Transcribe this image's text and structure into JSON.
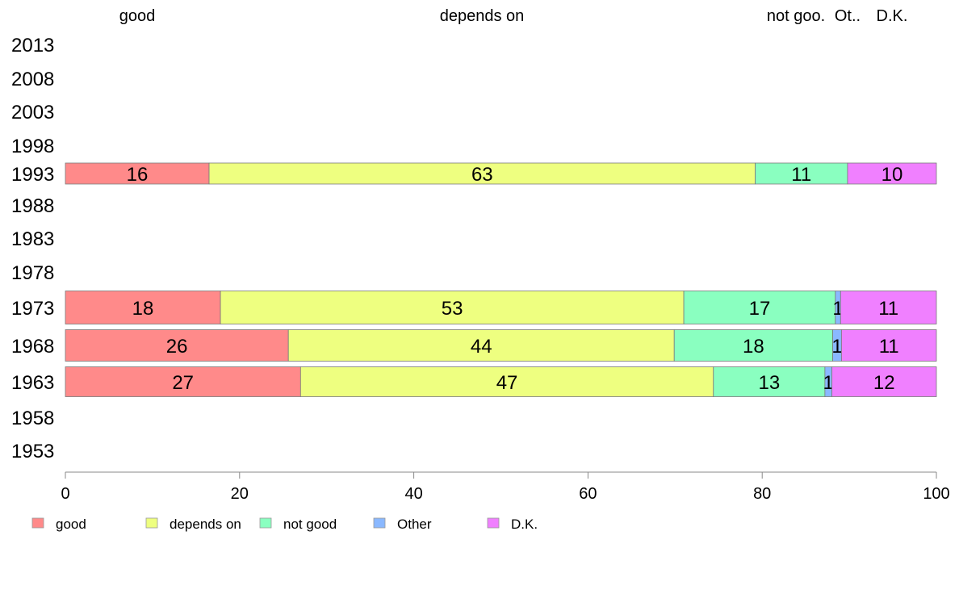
{
  "chart_data": {
    "type": "bar",
    "orientation": "horizontal",
    "stacked": true,
    "top_labels": [
      "good",
      "depends on",
      "not goo.",
      "Ot..",
      "D.K."
    ],
    "years": [
      "2013",
      "2008",
      "2003",
      "1998",
      "1993",
      "1988",
      "1983",
      "1978",
      "1973",
      "1968",
      "1963",
      "1958",
      "1953"
    ],
    "series": [
      {
        "name": "good",
        "color": "#ff8a8a",
        "values": [
          null,
          null,
          null,
          null,
          16.5,
          null,
          null,
          null,
          17.8,
          25.6,
          27.0,
          null,
          null
        ],
        "labels": [
          "",
          "",
          "",
          "",
          "16",
          "",
          "",
          "",
          "18",
          "26",
          "27",
          "",
          ""
        ]
      },
      {
        "name": "depends on",
        "color": "#eeff80",
        "values": [
          null,
          null,
          null,
          null,
          62.7,
          null,
          null,
          null,
          53.2,
          44.3,
          47.4,
          null,
          null
        ],
        "labels": [
          "",
          "",
          "",
          "",
          "63",
          "",
          "",
          "",
          "53",
          "44",
          "47",
          "",
          ""
        ]
      },
      {
        "name": "not good",
        "color": "#8affc0",
        "values": [
          null,
          null,
          null,
          null,
          10.6,
          null,
          null,
          null,
          17.4,
          18.2,
          12.8,
          null,
          null
        ],
        "labels": [
          "",
          "",
          "",
          "",
          "11",
          "",
          "",
          "",
          "17",
          "18",
          "13",
          "",
          ""
        ]
      },
      {
        "name": "Other",
        "color": "#8ab8ff",
        "values": [
          null,
          null,
          null,
          null,
          0,
          null,
          null,
          null,
          0.6,
          1.0,
          0.8,
          null,
          null
        ],
        "labels": [
          "",
          "",
          "",
          "",
          "",
          "",
          "",
          "",
          "1",
          "1",
          "1",
          "",
          ""
        ]
      },
      {
        "name": "D.K.",
        "color": "#f080ff",
        "values": [
          null,
          null,
          null,
          null,
          10.2,
          null,
          null,
          null,
          11.0,
          10.9,
          12.0,
          null,
          null
        ],
        "labels": [
          "",
          "",
          "",
          "",
          "10",
          "",
          "",
          "",
          "11",
          "11",
          "12",
          "",
          ""
        ]
      }
    ],
    "xlim": [
      0,
      100
    ],
    "xticks": [
      "0",
      "20",
      "40",
      "60",
      "80",
      "100"
    ],
    "legend": [
      "good",
      "depends on",
      "not good",
      "Other",
      "D.K."
    ],
    "legend_position": "bottom",
    "grid": false
  }
}
